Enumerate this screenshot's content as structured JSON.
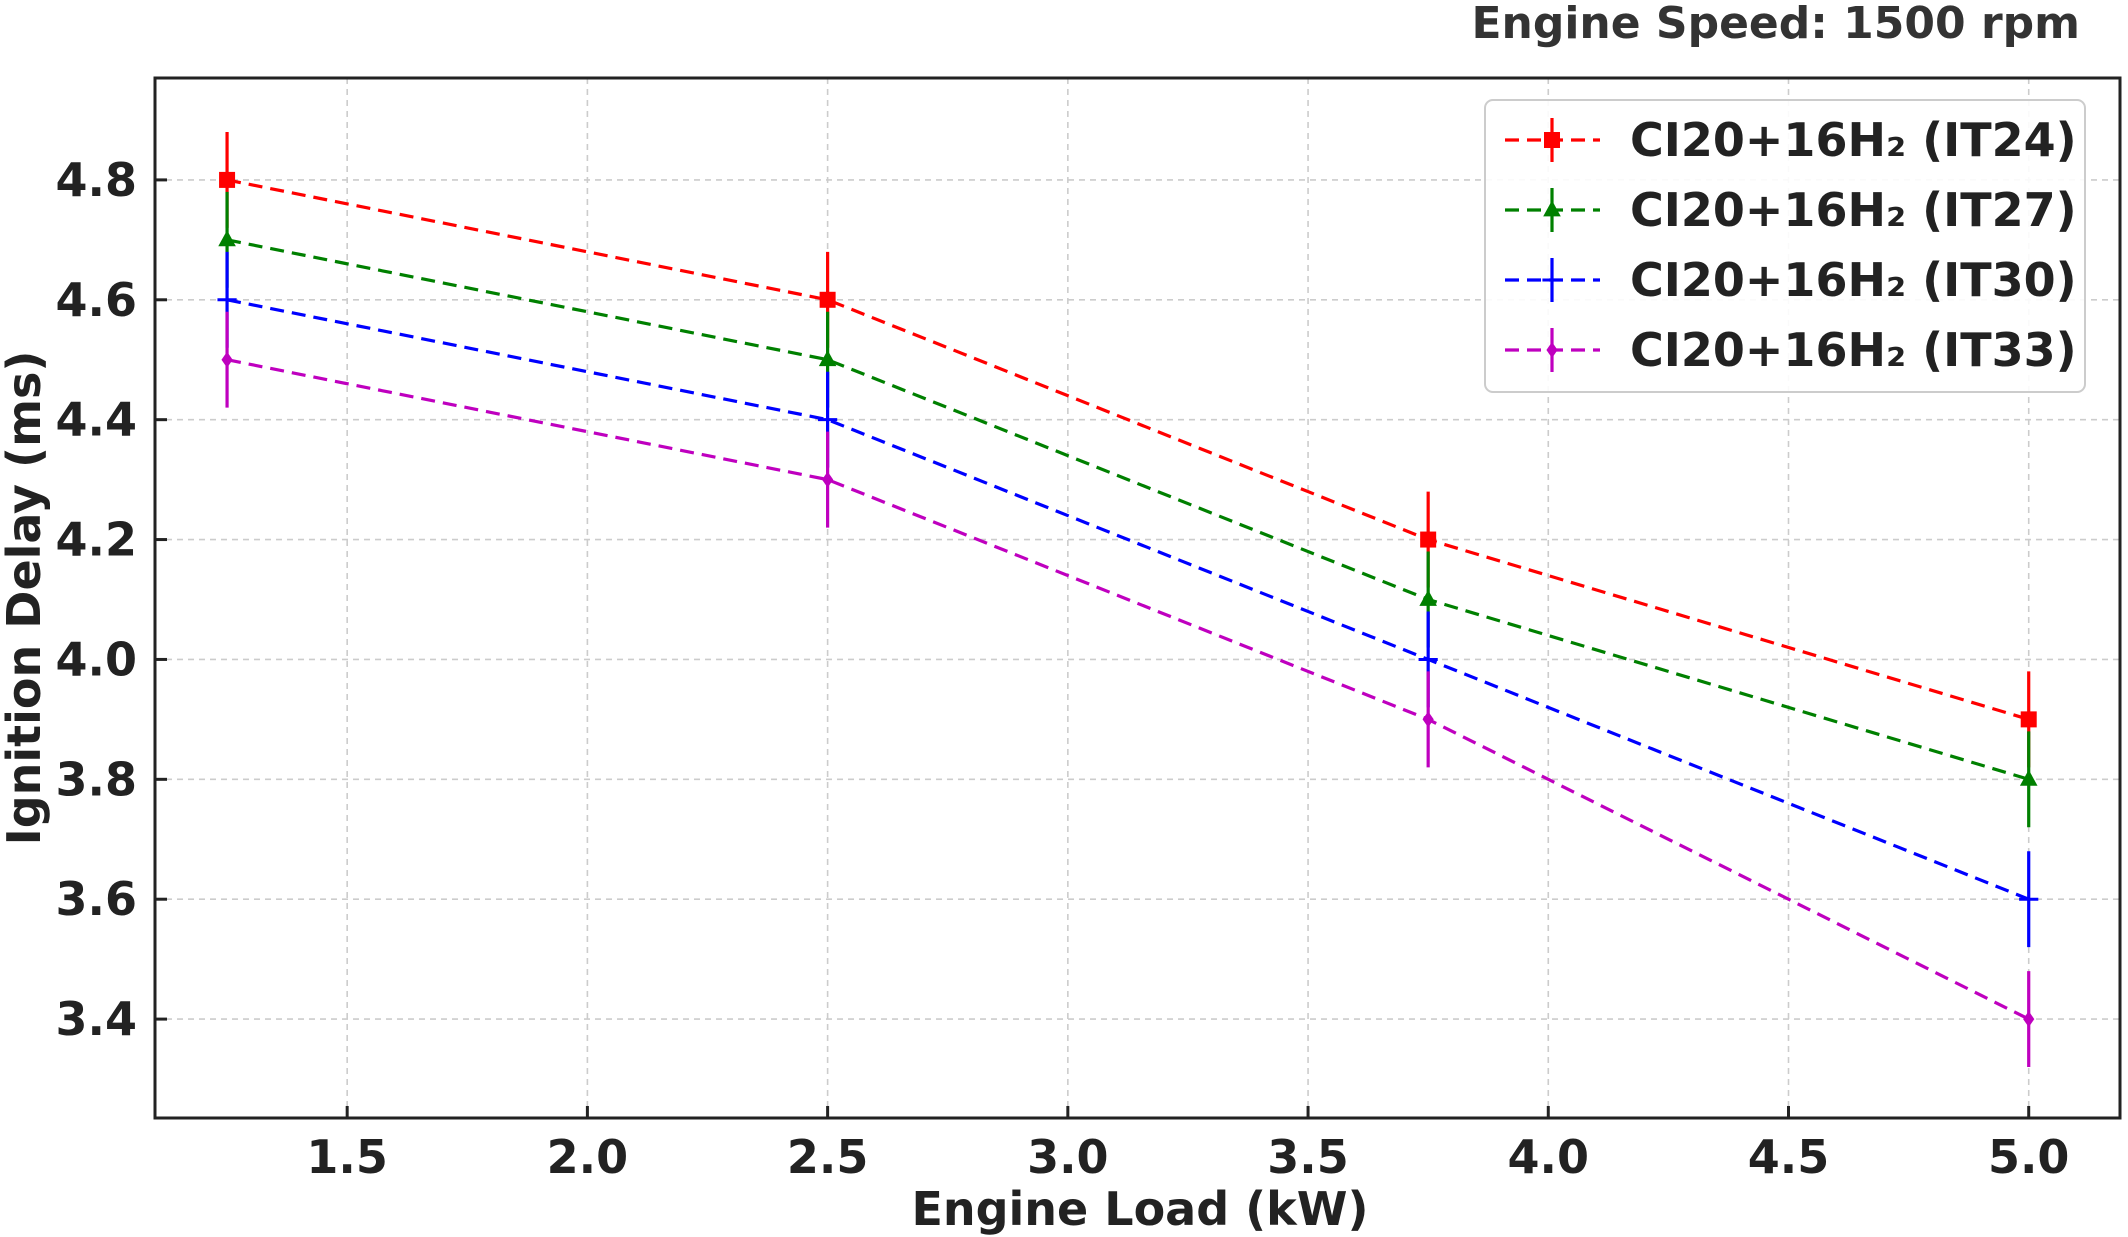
{
  "chart_data": {
    "type": "line",
    "title": "Engine Speed: 1500 rpm",
    "xlabel": "Engine Load (kW)",
    "ylabel": "Ignition Delay (ms)",
    "xlim": [
      1.1,
      5.19
    ],
    "ylim": [
      3.235,
      4.97
    ],
    "xticks": [
      "1.5",
      "2.0",
      "2.5",
      "3.0",
      "3.5",
      "4.0",
      "4.5",
      "5.0"
    ],
    "yticks": [
      "3.4",
      "3.6",
      "3.8",
      "4.0",
      "4.2",
      "4.4",
      "4.6",
      "4.8"
    ],
    "grid": true,
    "legend_position": "top-right",
    "x": [
      1.25,
      2.5,
      3.75,
      5.0
    ],
    "series": [
      {
        "name": "CI20+16H₂ (IT24)",
        "color": "#ff0000",
        "marker": "square",
        "values": [
          4.8,
          4.6,
          4.2,
          3.9
        ],
        "error": [
          0.08,
          0.08,
          0.08,
          0.08
        ]
      },
      {
        "name": "CI20+16H₂ (IT27)",
        "color": "#008000",
        "marker": "triangle",
        "values": [
          4.7,
          4.5,
          4.1,
          3.8
        ],
        "error": [
          0.08,
          0.08,
          0.08,
          0.08
        ]
      },
      {
        "name": "CI20+16H₂ (IT30)",
        "color": "#0000ff",
        "marker": "hline",
        "values": [
          4.6,
          4.4,
          4.0,
          3.6
        ],
        "error": [
          0.08,
          0.08,
          0.08,
          0.08
        ]
      },
      {
        "name": "CI20+16H₂ (IT33)",
        "color": "#bf00bf",
        "marker": "diamond",
        "values": [
          4.5,
          4.3,
          3.9,
          3.4
        ],
        "error": [
          0.08,
          0.08,
          0.08,
          0.08
        ]
      }
    ]
  }
}
